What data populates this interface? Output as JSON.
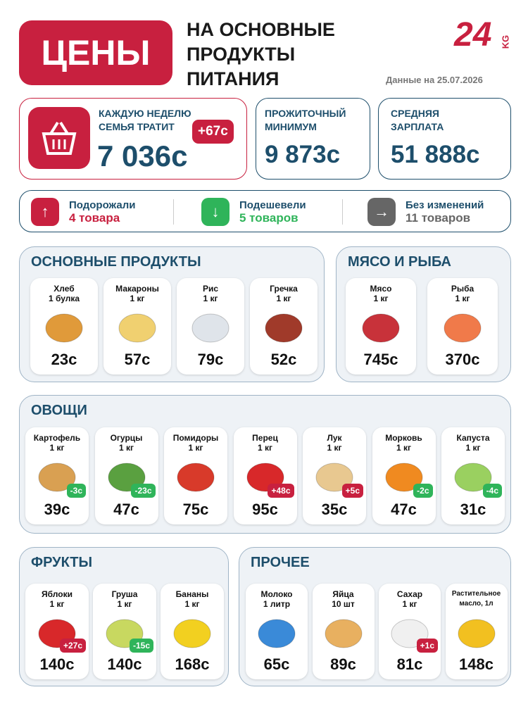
{
  "header": {
    "title": "ЦЕНЫ",
    "subtitle": [
      "НА ОСНОВНЫЕ",
      "ПРОДУКТЫ",
      "ПИТАНИЯ"
    ],
    "logo": "24",
    "logo_sub": "KG",
    "date": "Данные на 25.07.2026"
  },
  "stats": {
    "family": {
      "label": [
        "КАЖДУЮ НЕДЕЛЮ",
        "СЕМЬЯ ТРАТИТ"
      ],
      "value": "7 036с",
      "change": "+67с"
    },
    "minimum": {
      "label": [
        "ПРОЖИТОЧНЫЙ",
        "МИНИМУМ"
      ],
      "value": "9 873с"
    },
    "salary": {
      "label": [
        "СРЕДНЯЯ",
        "ЗАРПЛАТА"
      ],
      "value": "51 888с"
    }
  },
  "summary": [
    {
      "label": "Подорожали",
      "count": "4 товара"
    },
    {
      "label": "Подешевели",
      "count": "5 товаров"
    },
    {
      "label": "Без изменений",
      "count": "11 товаров"
    }
  ],
  "sections": [
    {
      "title": "ОСНОВНЫЕ ПРОДУКТЫ",
      "items": [
        {
          "name": "Хлеб",
          "unit": "1 булка",
          "price": "23с"
        },
        {
          "name": "Макароны",
          "unit": "1 кг",
          "price": "57с"
        },
        {
          "name": "Рис",
          "unit": "1 кг",
          "price": "79с"
        },
        {
          "name": "Гречка",
          "unit": "1 кг",
          "price": "52с"
        }
      ]
    },
    {
      "title": "МЯСО И РЫБА",
      "items": [
        {
          "name": "Мясо",
          "unit": "1 кг",
          "price": "745с"
        },
        {
          "name": "Рыба",
          "unit": "1 кг",
          "price": "370с"
        }
      ]
    },
    {
      "title": "ОВОЩИ",
      "items": [
        {
          "name": "Картофель",
          "unit": "1 кг",
          "price": "39с",
          "change": "-3с"
        },
        {
          "name": "Огурцы",
          "unit": "1 кг",
          "price": "47с",
          "change": "-23с"
        },
        {
          "name": "Помидоры",
          "unit": "1 кг",
          "price": "75с"
        },
        {
          "name": "Перец",
          "unit": "1 кг",
          "price": "95с",
          "change": "+48с"
        },
        {
          "name": "Лук",
          "unit": "1 кг",
          "price": "35с",
          "change": "+5с"
        },
        {
          "name": "Морковь",
          "unit": "1 кг",
          "price": "47с",
          "change": "-2с"
        },
        {
          "name": "Капуста",
          "unit": "1 кг",
          "price": "31с",
          "change": "-4с"
        }
      ]
    },
    {
      "title": "ФРУКТЫ",
      "items": [
        {
          "name": "Яблоки",
          "unit": "1 кг",
          "price": "140с",
          "change": "+27с"
        },
        {
          "name": "Груша",
          "unit": "1 кг",
          "price": "140с",
          "change": "-15с"
        },
        {
          "name": "Бананы",
          "unit": "1 кг",
          "price": "168с"
        }
      ]
    },
    {
      "title": "ПРОЧЕЕ",
      "items": [
        {
          "name": "Молоко",
          "unit": "1 литр",
          "price": "65с"
        },
        {
          "name": "Яйца",
          "unit": "10 шт",
          "price": "89с"
        },
        {
          "name": "Сахар",
          "unit": "1 кг",
          "price": "81с",
          "change": "+1с"
        },
        {
          "name": "Растительное",
          "unit": "масло, 1л",
          "price": "148с"
        }
      ]
    }
  ]
}
